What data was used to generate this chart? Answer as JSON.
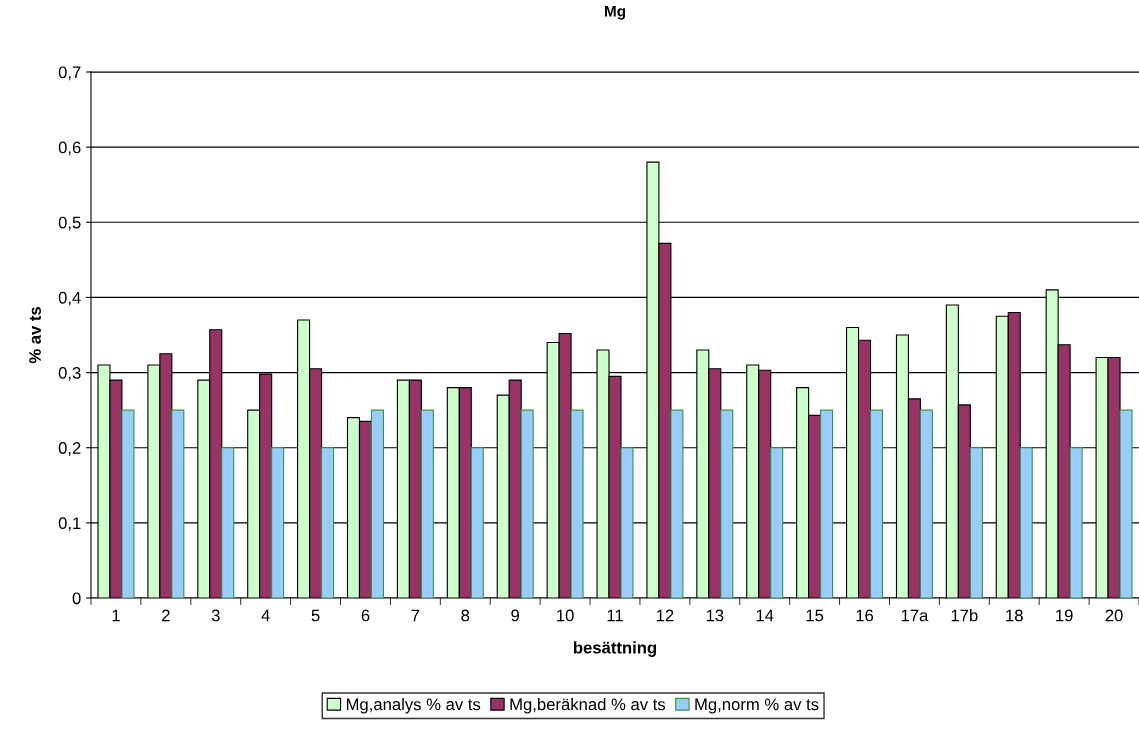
{
  "chart_data": {
    "type": "bar",
    "title": "Mg",
    "xlabel": "besättning",
    "ylabel": "% av ts",
    "categories": [
      "1",
      "2",
      "3",
      "4",
      "5",
      "6",
      "7",
      "8",
      "9",
      "10",
      "11",
      "12",
      "13",
      "14",
      "15",
      "16",
      "17a",
      "17b",
      "18",
      "19",
      "20"
    ],
    "series": [
      {
        "name": "Mg,analys % av ts",
        "color": "#ccffcc",
        "values": [
          0.31,
          0.31,
          0.29,
          0.25,
          0.37,
          0.24,
          0.29,
          0.28,
          0.27,
          0.34,
          0.33,
          0.58,
          0.33,
          0.31,
          0.28,
          0.36,
          0.35,
          0.39,
          0.375,
          0.41,
          0.32
        ]
      },
      {
        "name": "Mg,beräknad % av ts",
        "color": "#993366",
        "values": [
          0.29,
          0.325,
          0.357,
          0.298,
          0.305,
          0.235,
          0.29,
          0.28,
          0.29,
          0.352,
          0.295,
          0.472,
          0.305,
          0.303,
          0.243,
          0.343,
          0.265,
          0.257,
          0.38,
          0.337,
          0.32
        ]
      },
      {
        "name": "Mg,norm % av ts",
        "color": "#99ccff",
        "values": [
          0.25,
          0.25,
          0.2,
          0.2,
          0.2,
          0.25,
          0.25,
          0.2,
          0.25,
          0.25,
          0.2,
          0.25,
          0.25,
          0.2,
          0.25,
          0.25,
          0.25,
          0.2,
          0.2,
          0.2,
          0.25
        ]
      }
    ],
    "ylim": [
      0,
      0.7
    ],
    "yticks": [
      0,
      {
        "value": 0.1,
        "label": "0,1"
      },
      {
        "value": 0.2,
        "label": "0,2"
      },
      {
        "value": 0.3,
        "label": "0,3"
      },
      {
        "value": 0.4,
        "label": "0,4"
      },
      {
        "value": 0.5,
        "label": "0,5"
      },
      {
        "value": 0.6,
        "label": "0,6"
      },
      {
        "value": 0.7,
        "label": "0,7"
      }
    ],
    "grid": "y",
    "legend": "bottom"
  }
}
